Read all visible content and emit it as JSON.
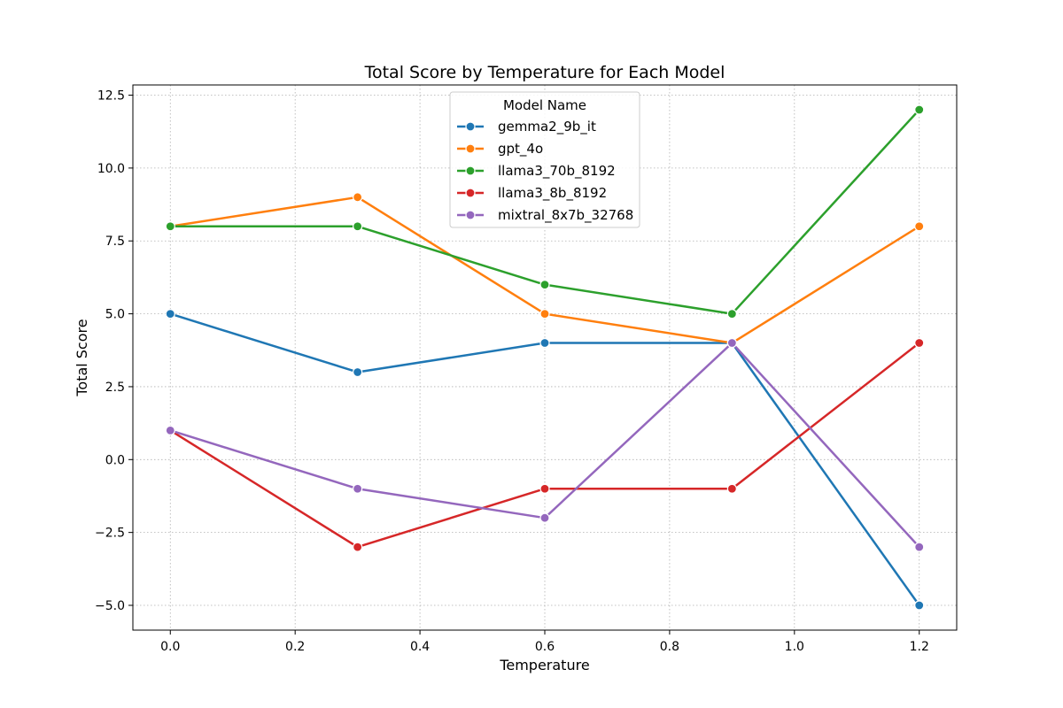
{
  "chart_data": {
    "type": "line",
    "title": "Total Score by Temperature for Each Model",
    "xlabel": "Temperature",
    "ylabel": "Total Score",
    "x": [
      0.0,
      0.3,
      0.6,
      0.9,
      1.2
    ],
    "xlim": [
      -0.06,
      1.26
    ],
    "ylim": [
      -5.85,
      12.85
    ],
    "xticks": [
      0.0,
      0.2,
      0.4,
      0.6,
      0.8,
      1.0,
      1.2
    ],
    "xtick_labels": [
      "0.0",
      "0.2",
      "0.4",
      "0.6",
      "0.8",
      "1.0",
      "1.2"
    ],
    "yticks": [
      -5.0,
      -2.5,
      0.0,
      2.5,
      5.0,
      7.5,
      10.0,
      12.5
    ],
    "ytick_labels": [
      "−5.0",
      "−2.5",
      "0.0",
      "2.5",
      "5.0",
      "7.5",
      "10.0",
      "12.5"
    ],
    "grid": true,
    "legend": {
      "title": "Model Name",
      "placement": "top-center"
    },
    "series": [
      {
        "name": "gemma2_9b_it",
        "color": "#1f77b4",
        "values": [
          5,
          3,
          4,
          4,
          -5
        ]
      },
      {
        "name": "gpt_4o",
        "color": "#ff7f0e",
        "values": [
          8,
          9,
          5,
          4,
          8
        ]
      },
      {
        "name": "llama3_70b_8192",
        "color": "#2ca02c",
        "values": [
          8,
          8,
          6,
          5,
          12
        ]
      },
      {
        "name": "llama3_8b_8192",
        "color": "#d62728",
        "values": [
          1,
          -3,
          -1,
          -1,
          4
        ]
      },
      {
        "name": "mixtral_8x7b_32768",
        "color": "#9467bd",
        "values": [
          1,
          -1,
          -2,
          4,
          -3
        ]
      }
    ]
  }
}
